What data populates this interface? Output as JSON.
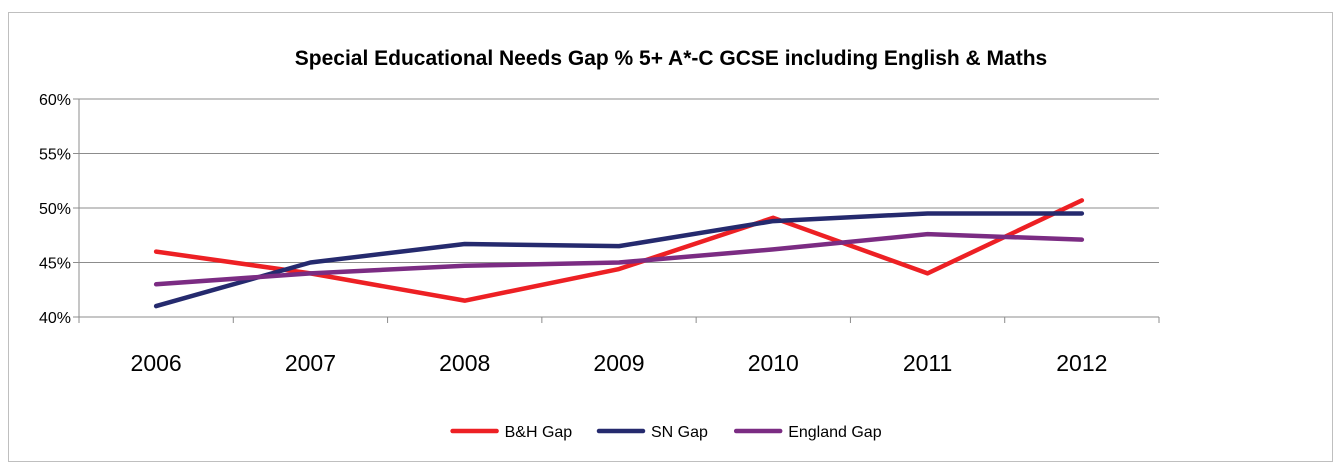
{
  "chart_data": {
    "type": "line",
    "title": "Special Educational Needs Gap % 5+ A*-C GCSE including English & Maths",
    "xlabel": "",
    "ylabel": "",
    "categories": [
      "2006",
      "2007",
      "2008",
      "2009",
      "2010",
      "2011",
      "2012"
    ],
    "ylim": [
      0.4,
      0.6
    ],
    "yticks": [
      {
        "value": 0.4,
        "label": "40%"
      },
      {
        "value": 0.45,
        "label": "45%"
      },
      {
        "value": 0.5,
        "label": "50%"
      },
      {
        "value": 0.55,
        "label": "55%"
      },
      {
        "value": 0.6,
        "label": "60%"
      }
    ],
    "grid": "horizontal",
    "legend_position": "bottom",
    "series": [
      {
        "name": "B&H Gap",
        "color": "#ed2024",
        "values": [
          0.46,
          0.44,
          0.415,
          0.444,
          0.491,
          0.44,
          0.507
        ]
      },
      {
        "name": "SN Gap",
        "color": "#252a6e",
        "values": [
          0.41,
          0.45,
          0.467,
          0.465,
          0.488,
          0.495,
          0.495
        ]
      },
      {
        "name": "England Gap",
        "color": "#7b2c83",
        "values": [
          0.43,
          0.44,
          0.447,
          0.45,
          0.462,
          0.476,
          0.471
        ]
      }
    ]
  }
}
